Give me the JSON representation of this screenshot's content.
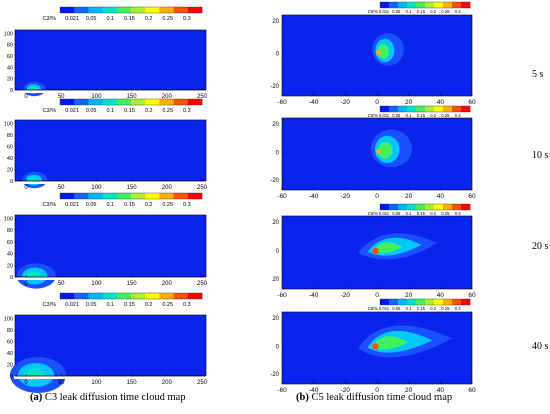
{
  "captions": {
    "left_letter": "(a)",
    "left_text": "C3 leak diffusion time cloud map",
    "right_letter": "(b)",
    "right_text": "C5 leak diffusion time cloud map"
  },
  "time_labels": [
    "5 s",
    "10 s",
    "20 s",
    "40 s"
  ],
  "left_panels": {
    "legend_label": "C3/%",
    "legend_values": [
      "0.021",
      "0.05",
      "0.1",
      "0.15",
      "0.2",
      "0.25",
      "0.3"
    ],
    "x_ticks": [
      "0",
      "50",
      "100",
      "150",
      "200",
      "250"
    ],
    "y_ticks": [
      "0",
      "20",
      "40",
      "60",
      "80",
      "100"
    ]
  },
  "right_panels": {
    "legend_label": "C5/%",
    "legend_values": [
      "0.011",
      "0.05",
      "0.1",
      "0.15",
      "0.2",
      "0.25",
      "0.3"
    ],
    "x_ticks": [
      "-60",
      "-40",
      "-20",
      "0",
      "20",
      "40",
      "60"
    ],
    "y_ticks_standard": [
      "20",
      "0",
      "-20"
    ],
    "y_ticks_variant": [
      "20",
      "0",
      "20"
    ]
  },
  "colors": {
    "background": "#0a24ee",
    "scale": [
      "#0018f0",
      "#1064ff",
      "#00b4ff",
      "#00e3c8",
      "#40f060",
      "#a8f030",
      "#ffff00",
      "#ffb000",
      "#ff5000",
      "#ff0000"
    ]
  }
}
